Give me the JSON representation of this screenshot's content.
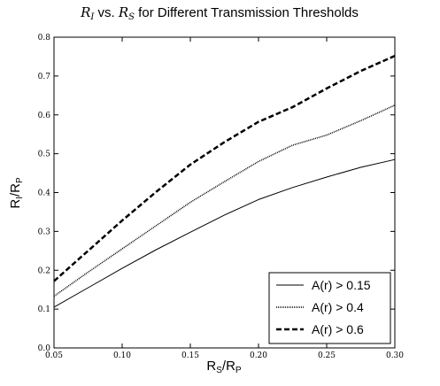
{
  "chart_data": {
    "type": "line",
    "title": {
      "symbol_y": "R",
      "sub_y": "I",
      "middle": " vs. ",
      "symbol_x": "R",
      "sub_x": "S",
      "rest": " for Different Transmission Thresholds"
    },
    "xlabel": {
      "main": "R",
      "sub1": "S",
      "mid": "/R",
      "sub2": "P"
    },
    "ylabel": {
      "main": "R",
      "sub1": "I",
      "mid": "/R",
      "sub2": "P"
    },
    "xlim": [
      0.05,
      0.3
    ],
    "ylim": [
      0.0,
      0.8
    ],
    "xticks": [
      0.05,
      0.1,
      0.15,
      0.2,
      0.25,
      0.3
    ],
    "yticks": [
      0.0,
      0.1,
      0.2,
      0.3,
      0.4,
      0.5,
      0.6,
      0.7,
      0.8
    ],
    "xtick_labels": [
      "0.05",
      "0.10",
      "0.15",
      "0.20",
      "0.25",
      "0.30"
    ],
    "ytick_labels": [
      "0.0",
      "0.1",
      "0.2",
      "0.3",
      "0.4",
      "0.5",
      "0.6",
      "0.7",
      "0.8"
    ],
    "grid": false,
    "legend_position": "bottom-right",
    "x": [
      0.05,
      0.075,
      0.1,
      0.125,
      0.15,
      0.175,
      0.2,
      0.225,
      0.25,
      0.275,
      0.3
    ],
    "series": [
      {
        "name": "A(r) > 0.15",
        "style": "solid",
        "color": "#000000",
        "values": [
          0.105,
          0.155,
          0.205,
          0.253,
          0.298,
          0.342,
          0.382,
          0.413,
          0.44,
          0.465,
          0.485
        ]
      },
      {
        "name": "A(r) > 0.4",
        "style": "dotted",
        "color": "#000000",
        "values": [
          0.133,
          0.195,
          0.255,
          0.315,
          0.375,
          0.428,
          0.48,
          0.522,
          0.548,
          0.585,
          0.625
        ]
      },
      {
        "name": "A(r) > 0.6",
        "style": "dashed",
        "color": "#000000",
        "values": [
          0.172,
          0.25,
          0.328,
          0.402,
          0.472,
          0.53,
          0.582,
          0.62,
          0.668,
          0.713,
          0.752
        ]
      }
    ]
  }
}
